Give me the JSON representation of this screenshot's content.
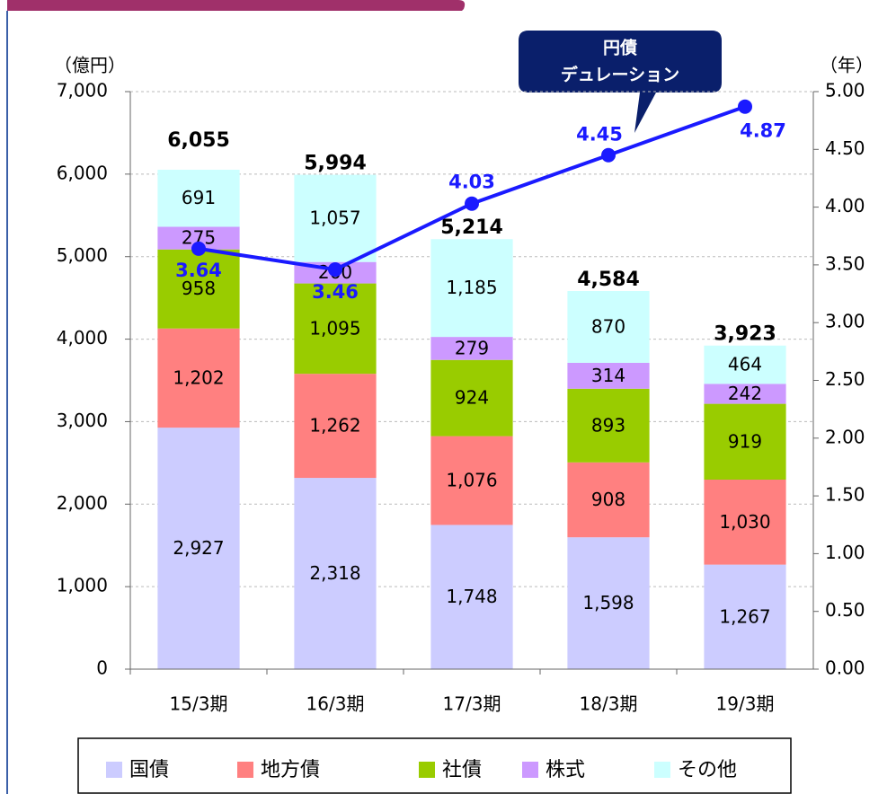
{
  "chart_data": {
    "type": "bar",
    "y_label": "（億円）",
    "y2_label": "（年）",
    "annotation": [
      "円債",
      "デュレーション"
    ],
    "categories": [
      "15/3期",
      "16/3期",
      "17/3期",
      "18/3期",
      "19/3期"
    ],
    "series": [
      {
        "name": "国債",
        "color": "#ccccff",
        "values": [
          2927,
          2318,
          1748,
          1598,
          1267
        ],
        "value_labels": [
          "2,927",
          "2,318",
          "1,748",
          "1,598",
          "1,267"
        ]
      },
      {
        "name": "地方債",
        "color": "#ff8080",
        "values": [
          1202,
          1262,
          1076,
          908,
          1030
        ],
        "value_labels": [
          "1,202",
          "1,262",
          "1,076",
          "908",
          "1,030"
        ]
      },
      {
        "name": "社債",
        "color": "#99cc00",
        "values": [
          958,
          1095,
          924,
          893,
          919
        ],
        "value_labels": [
          "958",
          "1,095",
          "924",
          "893",
          "919"
        ]
      },
      {
        "name": "株式",
        "color": "#cc99ff",
        "values": [
          275,
          260,
          279,
          314,
          242
        ],
        "value_labels": [
          "275",
          "260",
          "279",
          "314",
          "242"
        ]
      },
      {
        "name": "その他",
        "color": "#ccffff",
        "values": [
          691,
          1057,
          1185,
          870,
          464
        ],
        "value_labels": [
          "691",
          "1,057",
          "1,185",
          "870",
          "464"
        ]
      }
    ],
    "totals": {
      "values": [
        6055,
        5994,
        5214,
        4584,
        3923
      ],
      "value_labels": [
        "6,055",
        "5,994",
        "5,214",
        "4,584",
        "3,923"
      ]
    },
    "line": {
      "type": "line",
      "axis": "y2",
      "color": "#1a1aff",
      "values": [
        3.64,
        3.46,
        4.03,
        4.45,
        4.87
      ]
    },
    "ylim": [
      0,
      7000
    ],
    "yticks": [
      0,
      {
        "value": 1000,
        "label": "1,000"
      },
      {
        "value": 2000,
        "label": "2,000"
      },
      {
        "value": 3000,
        "label": "3,000"
      },
      {
        "value": 4000,
        "label": "4,000"
      },
      {
        "value": 5000,
        "label": "5,000"
      },
      {
        "value": 6000,
        "label": "6,000"
      },
      {
        "value": 7000,
        "label": "7,000"
      }
    ],
    "y2lim": [
      0,
      5
    ],
    "y2ticks": [
      {
        "value": 0,
        "label": "0.00"
      },
      {
        "value": 0.5,
        "label": "0.50"
      },
      {
        "value": 1,
        "label": "1.00"
      },
      {
        "value": 1.5,
        "label": "1.50"
      },
      {
        "value": 2,
        "label": "2.00"
      },
      {
        "value": 2.5,
        "label": "2.50"
      },
      {
        "value": 3,
        "label": "3.00"
      },
      {
        "value": 3.5,
        "label": "3.50"
      },
      {
        "value": 4,
        "label": "4.00"
      },
      {
        "value": 4.5,
        "label": "4.50"
      },
      {
        "value": 5,
        "label": "5.00"
      }
    ],
    "grid": true,
    "legend": "bottom"
  }
}
